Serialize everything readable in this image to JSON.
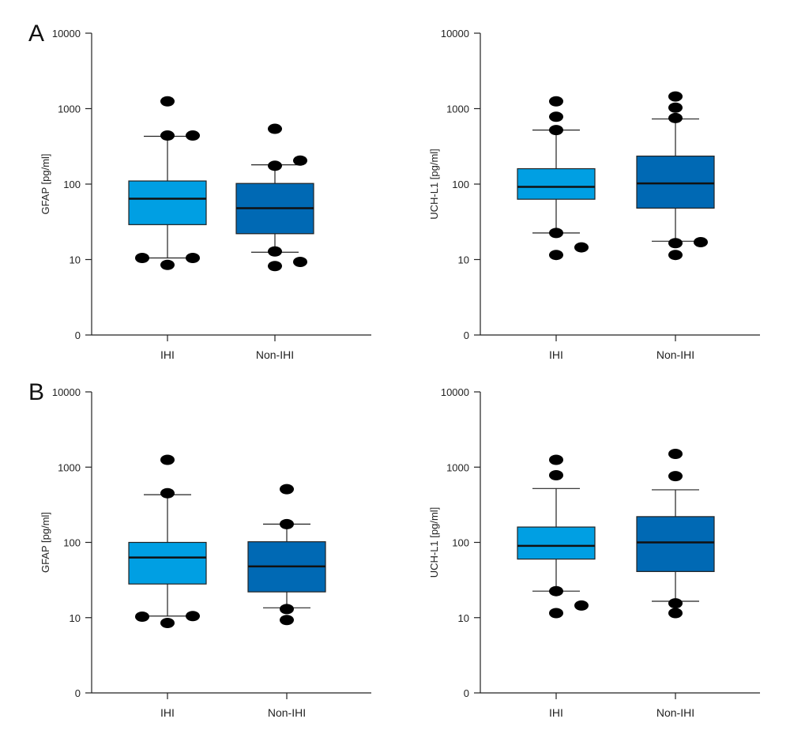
{
  "colors": {
    "IHI": "#009fe3",
    "Non-IHI": "#0069b4",
    "outlier": "#000000"
  },
  "chart_data": [
    {
      "panel": "A",
      "type": "box",
      "ylabel": "GFAP [pg/ml]",
      "yscale": "log",
      "ylim": [
        1,
        10000
      ],
      "yticks": [
        1,
        10,
        100,
        1000,
        10000
      ],
      "yticklabels": [
        "0",
        "10",
        "100",
        "1000",
        "10000"
      ],
      "categories": [
        "IHI",
        "Non-IHI"
      ],
      "boxes": [
        {
          "q1": 29,
          "median": 64,
          "q3": 110,
          "whisker_low": 10.5,
          "whisker_high": 430,
          "outliers": [
            8.5,
            10.5,
            10.5,
            440,
            440,
            1250
          ]
        },
        {
          "q1": 22,
          "median": 48,
          "q3": 102,
          "whisker_low": 12.5,
          "whisker_high": 180,
          "outliers": [
            8.2,
            9.3,
            12.8,
            175,
            205,
            540
          ]
        }
      ]
    },
    {
      "panel": "",
      "type": "box",
      "ylabel": "UCH-L1 [pg/ml]",
      "yscale": "log",
      "ylim": [
        1,
        10000
      ],
      "yticks": [
        1,
        10,
        100,
        1000,
        10000
      ],
      "yticklabels": [
        "0",
        "10",
        "100",
        "1000",
        "10000"
      ],
      "categories": [
        "IHI",
        "Non-IHI"
      ],
      "boxes": [
        {
          "q1": 63,
          "median": 92,
          "q3": 160,
          "whisker_low": 22.5,
          "whisker_high": 520,
          "outliers": [
            11.5,
            14.5,
            22.5,
            520,
            780,
            1250
          ]
        },
        {
          "q1": 48,
          "median": 102,
          "q3": 235,
          "whisker_low": 17.5,
          "whisker_high": 730,
          "outliers": [
            11.5,
            16.5,
            17,
            750,
            1030,
            1450
          ]
        }
      ]
    },
    {
      "panel": "B",
      "type": "box",
      "ylabel": "GFAP [pg/ml]",
      "yscale": "log",
      "ylim": [
        1,
        10000
      ],
      "yticks": [
        1,
        10,
        100,
        1000,
        10000
      ],
      "yticklabels": [
        "0",
        "10",
        "100",
        "1000",
        "10000"
      ],
      "categories": [
        "IHI",
        "Non-IHI"
      ],
      "boxes": [
        {
          "q1": 28,
          "median": 63,
          "q3": 100,
          "whisker_low": 10.5,
          "whisker_high": 430,
          "outliers": [
            8.5,
            10.5,
            10.3,
            450,
            1250
          ]
        },
        {
          "q1": 22,
          "median": 48,
          "q3": 102,
          "whisker_low": 13.5,
          "whisker_high": 175,
          "outliers": [
            9.3,
            13,
            175,
            510
          ]
        }
      ]
    },
    {
      "panel": "",
      "type": "box",
      "ylabel": "UCH-L1 [pg/ml]",
      "yscale": "log",
      "ylim": [
        1,
        10000
      ],
      "yticks": [
        1,
        10,
        100,
        1000,
        10000
      ],
      "yticklabels": [
        "0",
        "10",
        "100",
        "1000",
        "10000"
      ],
      "categories": [
        "IHI",
        "Non-IHI"
      ],
      "boxes": [
        {
          "q1": 60,
          "median": 90,
          "q3": 160,
          "whisker_low": 22.5,
          "whisker_high": 520,
          "outliers": [
            11.5,
            14.5,
            22.5,
            780,
            1250
          ]
        },
        {
          "q1": 41,
          "median": 100,
          "q3": 220,
          "whisker_low": 16.5,
          "whisker_high": 500,
          "outliers": [
            11.5,
            15.5,
            760,
            1500
          ]
        }
      ]
    }
  ]
}
